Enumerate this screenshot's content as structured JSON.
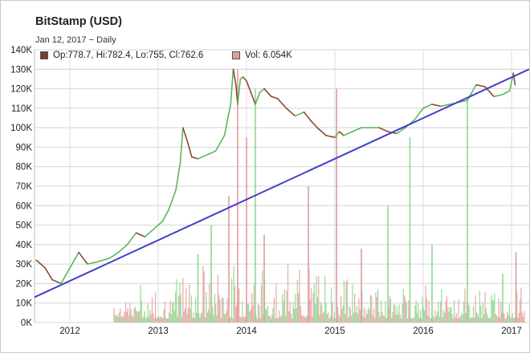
{
  "header": {
    "title": "BitStamp (USD)",
    "subtitle": "Jan 12, 2017 − Daily"
  },
  "legend": {
    "ohlc_text": "Op:778.7, Hi:782.4, Lo:755, Cl:762.6",
    "volume_text": "Vol: 6.054K",
    "ohlc_color": "#7a3b2e",
    "volume_color": "#e0a0a0"
  },
  "chart_data": {
    "type": "line",
    "xlabel": "",
    "ylabel": "",
    "xlim": [
      2011.6,
      2017.2
    ],
    "ylim": [
      0,
      140000
    ],
    "x_ticks": [
      "2012",
      "2013",
      "2014",
      "2015",
      "2016",
      "2017"
    ],
    "x_tick_values": [
      2012,
      2013,
      2014,
      2015,
      2016,
      2017
    ],
    "y_ticks": [
      "0K",
      "10K",
      "20K",
      "30K",
      "40K",
      "50K",
      "60K",
      "70K",
      "80K",
      "90K",
      "100K",
      "110K",
      "120K",
      "130K",
      "140K"
    ],
    "y_tick_values": [
      0,
      10000,
      20000,
      30000,
      40000,
      50000,
      60000,
      70000,
      80000,
      90000,
      100000,
      110000,
      120000,
      130000,
      140000
    ],
    "grid": true,
    "legend_position": "top-left",
    "series": [
      {
        "style": "price",
        "color_up": "#5cb85c",
        "color_down": "#8b4a2f",
        "x": [
          2011.62,
          2011.72,
          2011.8,
          2011.9,
          2012.0,
          2012.1,
          2012.2,
          2012.3,
          2012.45,
          2012.55,
          2012.65,
          2012.75,
          2012.85,
          2012.95,
          2013.05,
          2013.12,
          2013.2,
          2013.25,
          2013.28,
          2013.33,
          2013.38,
          2013.45,
          2013.55,
          2013.65,
          2013.75,
          2013.82,
          2013.85,
          2013.88,
          2013.9,
          2013.93,
          2013.96,
          2014.0,
          2014.05,
          2014.1,
          2014.15,
          2014.2,
          2014.28,
          2014.35,
          2014.45,
          2014.55,
          2014.65,
          2014.72,
          2014.8,
          2014.9,
          2015.0,
          2015.05,
          2015.1,
          2015.2,
          2015.3,
          2015.4,
          2015.5,
          2015.6,
          2015.7,
          2015.8,
          2015.9,
          2016.0,
          2016.1,
          2016.2,
          2016.3,
          2016.4,
          2016.5,
          2016.55,
          2016.6,
          2016.7,
          2016.8,
          2016.9,
          2016.98,
          2017.02,
          2017.04
        ],
        "y": [
          32000,
          28000,
          22000,
          20000,
          28000,
          36000,
          30000,
          31000,
          33000,
          36000,
          40000,
          46000,
          44000,
          48000,
          52000,
          58000,
          68000,
          82000,
          100000,
          93000,
          85000,
          84000,
          86000,
          88000,
          96000,
          112000,
          130000,
          122000,
          112000,
          125000,
          126000,
          124000,
          118000,
          112000,
          118000,
          120000,
          116000,
          115000,
          110000,
          106000,
          108000,
          104000,
          100000,
          96000,
          95000,
          98000,
          96000,
          98000,
          100000,
          100000,
          100000,
          98000,
          97000,
          100000,
          104000,
          110000,
          112000,
          111000,
          112000,
          113000,
          114000,
          118000,
          122000,
          121000,
          116000,
          117000,
          119000,
          128000,
          122000
        ]
      },
      {
        "style": "trend",
        "color": "#4040cc",
        "x": [
          2011.6,
          2017.2
        ],
        "y": [
          13000,
          130000
        ]
      }
    ],
    "volume_spikes": [
      {
        "x": 2013.9,
        "value": 130000
      },
      {
        "x": 2014.1,
        "value": 120000
      },
      {
        "x": 2015.02,
        "value": 120000
      },
      {
        "x": 2016.5,
        "value": 115000
      },
      {
        "x": 2014.0,
        "value": 95000
      },
      {
        "x": 2015.85,
        "value": 95000
      },
      {
        "x": 2014.7,
        "value": 70000
      },
      {
        "x": 2015.6,
        "value": 60000
      },
      {
        "x": 2013.8,
        "value": 65000
      },
      {
        "x": 2013.6,
        "value": 50000
      },
      {
        "x": 2014.2,
        "value": 45000
      },
      {
        "x": 2016.1,
        "value": 40000
      },
      {
        "x": 2015.3,
        "value": 38000
      },
      {
        "x": 2016.9,
        "value": 25000
      },
      {
        "x": 2017.05,
        "value": 36000
      },
      {
        "x": 2013.45,
        "value": 35000
      }
    ]
  }
}
